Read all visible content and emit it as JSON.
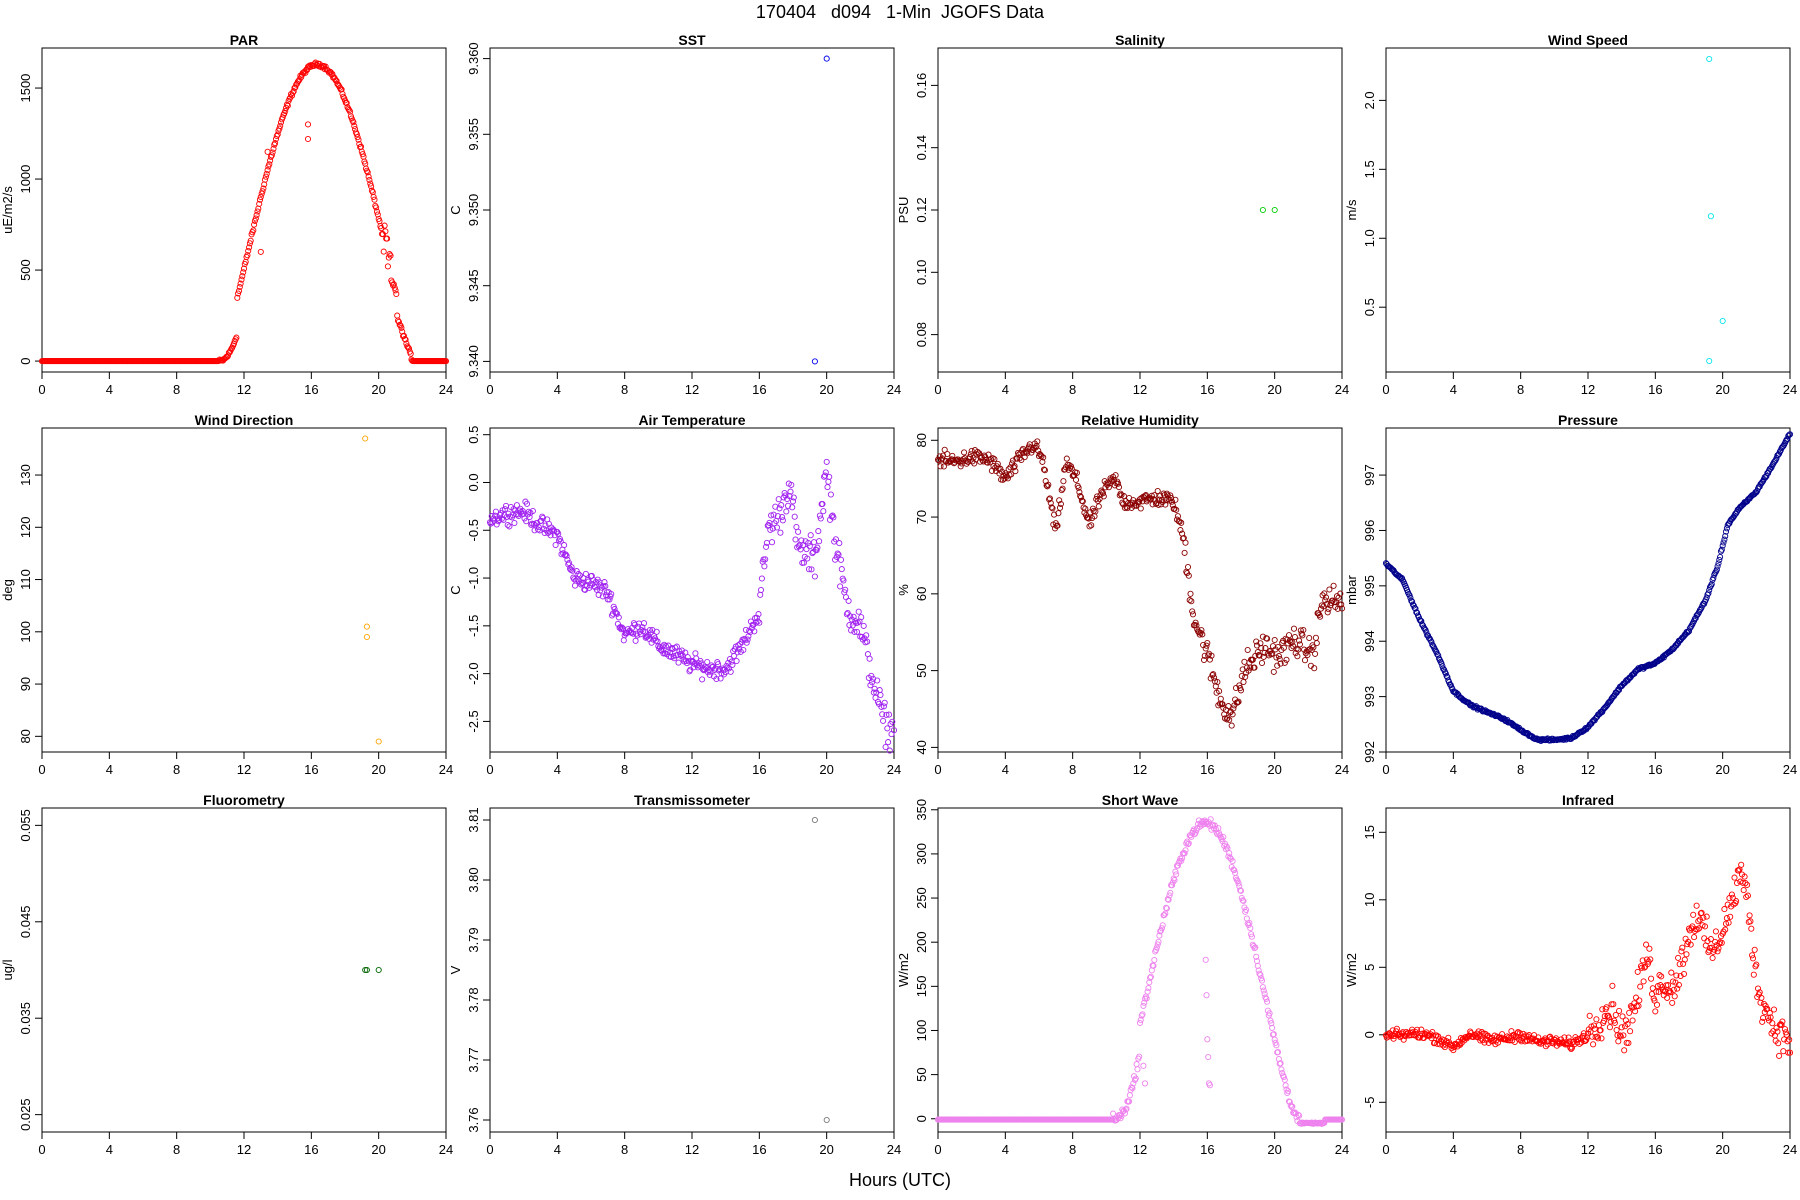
{
  "title": "170404   d094   1-Min  JGOFS Data",
  "xlabel": "Hours (UTC)",
  "chart_data": [
    {
      "type": "scatter",
      "title": "PAR",
      "ylabel": "uE/m2/s",
      "color": "#ff0000",
      "xlim": [
        0,
        24
      ],
      "ylim": [
        -60,
        1720
      ],
      "xticks": [
        0,
        4,
        8,
        12,
        16,
        20,
        24
      ],
      "yticks": [
        0,
        500,
        1000,
        1500
      ],
      "generator": "par",
      "points": [
        [
          13.0,
          600
        ],
        [
          13.4,
          1150
        ],
        [
          15.8,
          1220
        ],
        [
          15.8,
          1300
        ]
      ]
    },
    {
      "type": "scatter",
      "title": "SST",
      "ylabel": "C",
      "color": "#0000ee",
      "xlim": [
        0,
        24
      ],
      "ylim": [
        9.3393,
        9.3607
      ],
      "xticks": [
        0,
        4,
        8,
        12,
        16,
        20,
        24
      ],
      "yticks": [
        9.34,
        9.345,
        9.35,
        9.355,
        9.36
      ],
      "ytick_decimals": 3,
      "points": [
        [
          19.3,
          9.34
        ],
        [
          20.0,
          9.36
        ]
      ]
    },
    {
      "type": "scatter",
      "title": "Salinity",
      "ylabel": "PSU",
      "color": "#00cc00",
      "xlim": [
        0,
        24
      ],
      "ylim": [
        0.068,
        0.172
      ],
      "xticks": [
        0,
        4,
        8,
        12,
        16,
        20,
        24
      ],
      "yticks": [
        0.08,
        0.1,
        0.12,
        0.14,
        0.16
      ],
      "ytick_decimals": 2,
      "points": [
        [
          19.3,
          0.12
        ],
        [
          20.0,
          0.12
        ]
      ]
    },
    {
      "type": "scatter",
      "title": "Wind Speed",
      "ylabel": "m/s",
      "color": "#00e5ee",
      "xlim": [
        0,
        24
      ],
      "ylim": [
        0.03,
        2.38
      ],
      "xticks": [
        0,
        4,
        8,
        12,
        16,
        20,
        24
      ],
      "yticks": [
        0.5,
        1.0,
        1.5,
        2.0
      ],
      "ytick_decimals": 1,
      "points": [
        [
          19.2,
          2.3
        ],
        [
          19.3,
          1.16
        ],
        [
          20.0,
          0.4
        ],
        [
          19.2,
          0.11
        ]
      ]
    },
    {
      "type": "scatter",
      "title": "Wind Direction",
      "ylabel": "deg",
      "color": "#ffa500",
      "xlim": [
        0,
        24
      ],
      "ylim": [
        77,
        139
      ],
      "xticks": [
        0,
        4,
        8,
        12,
        16,
        20,
        24
      ],
      "yticks": [
        80,
        90,
        100,
        110,
        120,
        130
      ],
      "points": [
        [
          19.2,
          137
        ],
        [
          19.3,
          101
        ],
        [
          19.3,
          99
        ],
        [
          20.0,
          79
        ]
      ]
    },
    {
      "type": "scatter",
      "title": "Air Temperature",
      "ylabel": "C",
      "color": "#a020f0",
      "xlim": [
        0,
        24
      ],
      "ylim": [
        -2.82,
        0.57
      ],
      "xticks": [
        0,
        4,
        8,
        12,
        16,
        20,
        24
      ],
      "yticks": [
        -2.5,
        -2.0,
        -1.5,
        -1.0,
        -0.5,
        0.0,
        0.5
      ],
      "ytick_decimals": 1,
      "generator": "air",
      "path": [
        [
          0,
          -0.38
        ],
        [
          1,
          -0.32
        ],
        [
          2,
          -0.3
        ],
        [
          3,
          -0.45
        ],
        [
          4,
          -0.55
        ],
        [
          5,
          -1.0
        ],
        [
          6,
          -1.05
        ],
        [
          7,
          -1.15
        ],
        [
          8,
          -1.6
        ],
        [
          9,
          -1.5
        ],
        [
          10,
          -1.7
        ],
        [
          11,
          -1.8
        ],
        [
          12,
          -1.9
        ],
        [
          13,
          -1.95
        ],
        [
          14,
          -1.95
        ],
        [
          15,
          -1.7
        ],
        [
          16,
          -1.35
        ],
        [
          16.5,
          -0.5
        ],
        [
          17.3,
          -0.3
        ],
        [
          17.8,
          0.0
        ],
        [
          18.3,
          -0.7
        ],
        [
          19.3,
          -0.8
        ],
        [
          20.0,
          0.15
        ],
        [
          20.5,
          -0.6
        ],
        [
          21.2,
          -1.3
        ],
        [
          22.0,
          -1.5
        ],
        [
          22.8,
          -2.1
        ],
        [
          23.4,
          -2.5
        ],
        [
          24.0,
          -2.65
        ]
      ]
    },
    {
      "type": "scatter",
      "title": "Relative Humidity",
      "ylabel": "%",
      "color": "#8b0000",
      "xlim": [
        0,
        24
      ],
      "ylim": [
        39.4,
        81.6
      ],
      "xticks": [
        0,
        4,
        8,
        12,
        16,
        20,
        24
      ],
      "yticks": [
        40,
        50,
        60,
        70,
        80
      ],
      "generator": "rh",
      "path": [
        [
          0,
          77.5
        ],
        [
          1,
          77.2
        ],
        [
          2,
          77.8
        ],
        [
          3,
          77.5
        ],
        [
          4,
          75
        ],
        [
          5,
          78
        ],
        [
          5.7,
          79.5
        ],
        [
          6.2,
          77.5
        ],
        [
          7,
          68
        ],
        [
          7.6,
          77
        ],
        [
          8.2,
          75
        ],
        [
          9,
          69
        ],
        [
          9.7,
          73
        ],
        [
          10.5,
          75
        ],
        [
          11,
          72
        ],
        [
          12,
          72
        ],
        [
          13,
          72.5
        ],
        [
          14,
          72
        ],
        [
          14.6,
          67
        ],
        [
          15.2,
          57
        ],
        [
          16,
          52
        ],
        [
          16.8,
          46
        ],
        [
          17.5,
          44
        ],
        [
          18.2,
          50
        ],
        [
          19.3,
          53
        ],
        [
          20.3,
          52
        ],
        [
          21.2,
          54
        ],
        [
          22.3,
          52
        ],
        [
          22.8,
          59
        ],
        [
          24.0,
          59
        ]
      ]
    },
    {
      "type": "scatter",
      "title": "Pressure",
      "ylabel": "mbar",
      "color": "#00008b",
      "xlim": [
        0,
        24
      ],
      "ylim": [
        992.0,
        997.85
      ],
      "xticks": [
        0,
        4,
        8,
        12,
        16,
        20,
        24
      ],
      "yticks": [
        992,
        993,
        994,
        995,
        996,
        997
      ],
      "generator": "pressure",
      "path": [
        [
          0,
          995.4
        ],
        [
          1,
          995.1
        ],
        [
          2,
          994.4
        ],
        [
          3,
          993.8
        ],
        [
          4,
          993.1
        ],
        [
          5,
          992.85
        ],
        [
          6,
          992.72
        ],
        [
          7,
          992.6
        ],
        [
          8,
          992.4
        ],
        [
          9,
          992.22
        ],
        [
          10,
          992.22
        ],
        [
          11,
          992.25
        ],
        [
          12,
          992.45
        ],
        [
          13,
          992.8
        ],
        [
          14,
          993.2
        ],
        [
          15,
          993.5
        ],
        [
          16,
          993.6
        ],
        [
          17,
          993.85
        ],
        [
          18,
          994.2
        ],
        [
          19,
          994.75
        ],
        [
          19.7,
          995.35
        ],
        [
          20.3,
          996.1
        ],
        [
          21,
          996.4
        ],
        [
          22,
          996.7
        ],
        [
          23,
          997.2
        ],
        [
          24,
          997.75
        ]
      ]
    },
    {
      "type": "scatter",
      "title": "Fluorometry",
      "ylabel": "ug/l",
      "color": "#006400",
      "xlim": [
        0,
        24
      ],
      "ylim": [
        0.0232,
        0.0568
      ],
      "xticks": [
        0,
        4,
        8,
        12,
        16,
        20,
        24
      ],
      "yticks": [
        0.025,
        0.035,
        0.045,
        0.055
      ],
      "ytick_decimals": 3,
      "points": [
        [
          19.2,
          0.04
        ],
        [
          19.3,
          0.04
        ],
        [
          20.0,
          0.04
        ]
      ]
    },
    {
      "type": "scatter",
      "title": "Transmissometer",
      "ylabel": "V",
      "color": "#777777",
      "xlim": [
        0,
        24
      ],
      "ylim": [
        3.758,
        3.812
      ],
      "xticks": [
        0,
        4,
        8,
        12,
        16,
        20,
        24
      ],
      "yticks": [
        3.76,
        3.77,
        3.78,
        3.79,
        3.8,
        3.81
      ],
      "ytick_decimals": 2,
      "points": [
        [
          19.3,
          3.81
        ],
        [
          20.0,
          3.76
        ]
      ]
    },
    {
      "type": "scatter",
      "title": "Short Wave",
      "ylabel": "W/m2",
      "color": "#ee82ee",
      "xlim": [
        0,
        24
      ],
      "ylim": [
        -15,
        352
      ],
      "xticks": [
        0,
        4,
        8,
        12,
        16,
        20,
        24
      ],
      "yticks": [
        0,
        50,
        100,
        150,
        200,
        250,
        300,
        350
      ],
      "generator": "sw",
      "points": [
        [
          15.9,
          180
        ],
        [
          15.95,
          140
        ],
        [
          16.0,
          90
        ],
        [
          16.05,
          70
        ],
        [
          16.1,
          40
        ],
        [
          16.15,
          38
        ],
        [
          12.2,
          60
        ],
        [
          12.3,
          40
        ]
      ]
    },
    {
      "type": "scatter",
      "title": "Infrared",
      "ylabel": "W/m2",
      "color": "#ff0000",
      "xlim": [
        0,
        24
      ],
      "ylim": [
        -7.2,
        16.8
      ],
      "xticks": [
        0,
        4,
        8,
        12,
        16,
        20,
        24
      ],
      "yticks": [
        -5,
        0,
        5,
        10,
        15
      ],
      "generator": "ir",
      "path": [
        [
          0,
          -0.1
        ],
        [
          2,
          0.1
        ],
        [
          3,
          -0.2
        ],
        [
          4,
          -0.9
        ],
        [
          5,
          0.1
        ],
        [
          6,
          -0.4
        ],
        [
          7,
          -0.3
        ],
        [
          8,
          0.0
        ],
        [
          9,
          -0.5
        ],
        [
          10,
          -0.5
        ],
        [
          11,
          -0.7
        ],
        [
          12,
          0.0
        ],
        [
          12.8,
          1.5
        ],
        [
          13.5,
          2.0
        ],
        [
          14.0,
          0.0
        ],
        [
          14.5,
          1.0
        ],
        [
          15,
          3.0
        ],
        [
          15.5,
          6.0
        ],
        [
          16,
          3.0
        ],
        [
          16.5,
          4.0
        ],
        [
          17,
          3.5
        ],
        [
          17.5,
          5.0
        ],
        [
          18,
          7.5
        ],
        [
          18.5,
          9.0
        ],
        [
          19,
          7.0
        ],
        [
          19.5,
          6.0
        ],
        [
          20,
          8.0
        ],
        [
          20.5,
          9.5
        ],
        [
          21,
          12.0
        ],
        [
          21.5,
          10.0
        ],
        [
          22,
          4.0
        ],
        [
          22.5,
          2.0
        ],
        [
          23,
          0.8
        ],
        [
          23.5,
          0.0
        ],
        [
          24.0,
          -0.5
        ]
      ]
    }
  ]
}
